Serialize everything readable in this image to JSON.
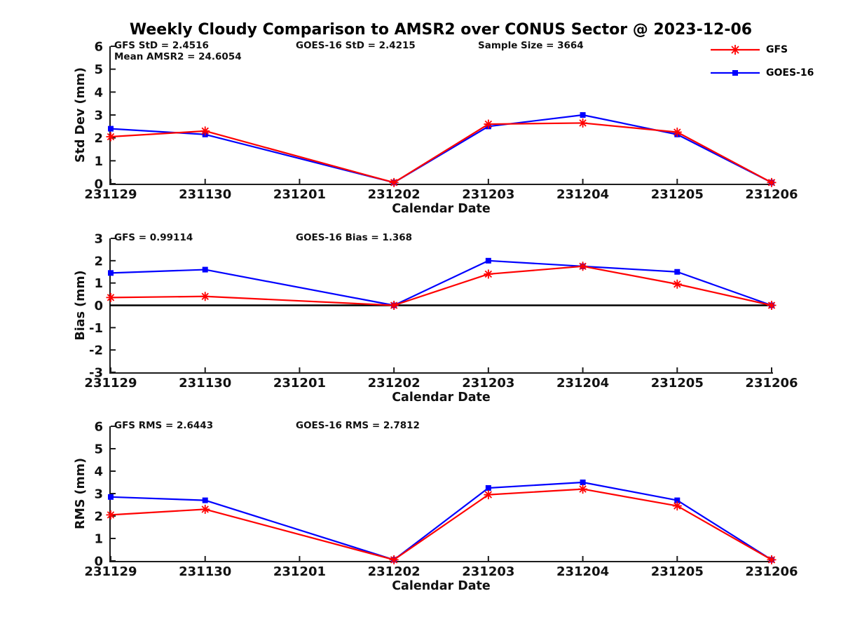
{
  "figure": {
    "title": "Weekly Cloudy Comparison to AMSR2 over CONUS Sector @ 2023-12-06"
  },
  "colors": {
    "gfs": "#ff0000",
    "goes16": "#0000ff",
    "axis": "#1c1c1c",
    "text": "#111111",
    "zero_line": "#000000"
  },
  "legend": {
    "items": [
      {
        "label": "GFS",
        "color": "#ff0000",
        "marker": "asterisk"
      },
      {
        "label": "GOES-16",
        "color": "#0000ff",
        "marker": "square"
      }
    ]
  },
  "chart_data": {
    "type": "line",
    "xlabel": "Calendar Date",
    "x_categories": [
      "231129",
      "231130",
      "231201",
      "231202",
      "231203",
      "231204",
      "231205",
      "231206"
    ],
    "legend_position": "top-right-outside",
    "grid": false,
    "charts": [
      {
        "name": "std-dev",
        "ylabel": "Std Dev (mm)",
        "ylim": [
          0,
          6
        ],
        "yticks": [
          0,
          1,
          2,
          3,
          4,
          5,
          6
        ],
        "zero_line": false,
        "annotations": [
          {
            "text": "GFS StD = 2.4516",
            "slot": "left",
            "row": 0
          },
          {
            "text": "Mean AMSR2 = 24.6054",
            "slot": "left",
            "row": 1
          },
          {
            "text": "GOES-16 StD = 2.4215",
            "slot": "center",
            "row": 0
          },
          {
            "text": "Sample Size = 3664",
            "slot": "right",
            "row": 0
          }
        ],
        "series": [
          {
            "name": "GFS",
            "color": "#ff0000",
            "marker": "asterisk",
            "values": [
              2.05,
              2.3,
              null,
              0.05,
              2.6,
              2.65,
              2.25,
              0.05
            ]
          },
          {
            "name": "GOES-16",
            "color": "#0000ff",
            "marker": "square",
            "values": [
              2.4,
              2.15,
              null,
              0.05,
              2.5,
              3.0,
              2.15,
              0.05
            ]
          }
        ]
      },
      {
        "name": "bias",
        "ylabel": "Bias (mm)",
        "ylim": [
          -3,
          3
        ],
        "yticks": [
          -3,
          -2,
          -1,
          0,
          1,
          2,
          3
        ],
        "zero_line": true,
        "annotations": [
          {
            "text": "GFS = 0.99114",
            "slot": "left",
            "row": 0
          },
          {
            "text": "GOES-16 Bias  = 1.368",
            "slot": "center",
            "row": 0
          }
        ],
        "series": [
          {
            "name": "GFS",
            "color": "#ff0000",
            "marker": "asterisk",
            "values": [
              0.35,
              0.4,
              null,
              0.0,
              1.4,
              1.75,
              0.95,
              0.0
            ]
          },
          {
            "name": "GOES-16",
            "color": "#0000ff",
            "marker": "square",
            "values": [
              1.45,
              1.6,
              null,
              0.0,
              2.0,
              1.75,
              1.5,
              0.0
            ]
          }
        ]
      },
      {
        "name": "rms",
        "ylabel": "RMS (mm)",
        "ylim": [
          0,
          6
        ],
        "yticks": [
          0,
          1,
          2,
          3,
          4,
          5,
          6
        ],
        "zero_line": false,
        "annotations": [
          {
            "text": "GFS RMS = 2.6443",
            "slot": "left",
            "row": 0
          },
          {
            "text": "GOES-16 RMS = 2.7812",
            "slot": "center",
            "row": 0
          }
        ],
        "series": [
          {
            "name": "GFS",
            "color": "#ff0000",
            "marker": "asterisk",
            "values": [
              2.05,
              2.3,
              null,
              0.05,
              2.95,
              3.2,
              2.45,
              0.05
            ]
          },
          {
            "name": "GOES-16",
            "color": "#0000ff",
            "marker": "square",
            "values": [
              2.85,
              2.7,
              null,
              0.05,
              3.25,
              3.5,
              2.7,
              0.05
            ]
          }
        ]
      }
    ]
  }
}
